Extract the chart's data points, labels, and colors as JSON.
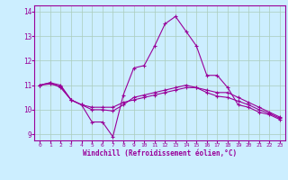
{
  "xlabel": "Windchill (Refroidissement éolien,°C)",
  "background_color": "#cceeff",
  "line_color": "#990099",
  "grid_color": "#aaccbb",
  "xlim": [
    0,
    23
  ],
  "ylim": [
    9,
    14
  ],
  "yticks": [
    9,
    10,
    11,
    12,
    13,
    14
  ],
  "xticks": [
    0,
    1,
    2,
    3,
    4,
    5,
    6,
    7,
    8,
    9,
    10,
    11,
    12,
    13,
    14,
    15,
    16,
    17,
    18,
    19,
    20,
    21,
    22,
    23
  ],
  "line1_x": [
    0,
    1,
    2,
    3,
    4,
    5,
    6,
    7,
    8,
    9,
    10,
    11,
    12,
    13,
    14,
    15,
    16,
    17,
    18,
    19,
    20,
    21,
    22,
    23
  ],
  "line1_y": [
    11.0,
    11.1,
    11.0,
    10.4,
    10.2,
    9.5,
    9.5,
    8.9,
    10.6,
    11.7,
    11.8,
    12.6,
    13.5,
    13.8,
    13.2,
    12.6,
    11.4,
    11.4,
    10.9,
    10.2,
    10.1,
    9.9,
    9.8,
    9.6
  ],
  "line2_x": [
    0,
    1,
    2,
    3,
    4,
    5,
    6,
    7,
    8,
    9,
    10,
    11,
    12,
    13,
    14,
    15,
    16,
    17,
    18,
    19,
    20,
    21,
    22,
    23
  ],
  "line2_y": [
    11.0,
    11.1,
    10.9,
    10.4,
    10.2,
    10.1,
    10.1,
    10.1,
    10.3,
    10.4,
    10.5,
    10.6,
    10.7,
    10.8,
    10.9,
    10.9,
    10.8,
    10.7,
    10.7,
    10.5,
    10.3,
    10.1,
    9.9,
    9.7
  ],
  "line3_x": [
    0,
    1,
    2,
    3,
    4,
    5,
    6,
    7,
    8,
    9,
    10,
    11,
    12,
    13,
    14,
    15,
    16,
    17,
    18,
    19,
    20,
    21,
    22,
    23
  ],
  "line3_y": [
    11.0,
    11.05,
    10.95,
    10.4,
    10.2,
    10.0,
    10.0,
    9.95,
    10.2,
    10.5,
    10.6,
    10.7,
    10.8,
    10.9,
    11.0,
    10.9,
    10.7,
    10.55,
    10.5,
    10.35,
    10.2,
    10.0,
    9.85,
    9.65
  ]
}
